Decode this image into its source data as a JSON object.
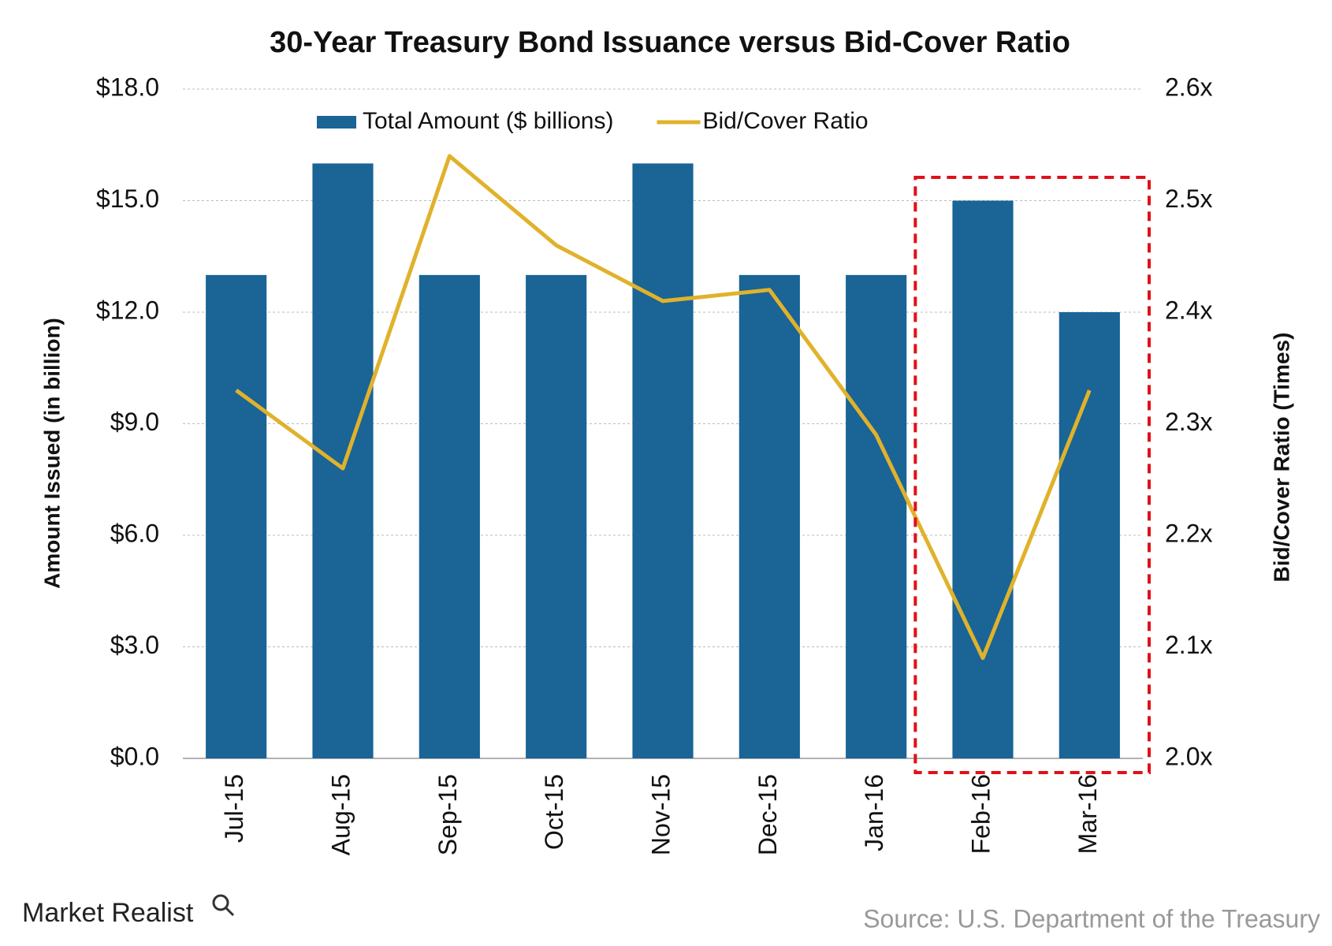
{
  "chart_data": {
    "type": "bar",
    "title": "30-Year Treasury Bond Issuance versus Bid-Cover Ratio",
    "y_label": "Amount Issued (in billion)",
    "y2_label": "Bid/Cover Ratio (Times)",
    "source": "Source: U.S. Department of the Treasury",
    "brand": "Market Realist",
    "categories": [
      "Jul-15",
      "Aug-15",
      "Sep-15",
      "Oct-15",
      "Nov-15",
      "Dec-15",
      "Jan-16",
      "Feb-16",
      "Mar-16"
    ],
    "series": [
      {
        "name": "Total Amount ($ billions)",
        "type": "bar",
        "color": "#1a6496",
        "values": [
          13,
          16,
          13,
          13,
          16,
          13,
          13,
          15,
          12
        ]
      },
      {
        "name": "Bid/Cover Ratio",
        "type": "line",
        "axis": "y2",
        "color": "#e0b22b",
        "values": [
          2.33,
          2.26,
          2.54,
          2.46,
          2.41,
          2.42,
          2.29,
          2.09,
          2.33
        ]
      }
    ],
    "ylim": [
      0,
      18
    ],
    "yticks": [
      {
        "value": 0,
        "label": "$0.0"
      },
      {
        "value": 3,
        "label": "$3.0"
      },
      {
        "value": 6,
        "label": "$6.0"
      },
      {
        "value": 9,
        "label": "$9.0"
      },
      {
        "value": 12,
        "label": "$12.0"
      },
      {
        "value": 15,
        "label": "$15.0"
      },
      {
        "value": 18,
        "label": "$18.0"
      }
    ],
    "y2lim": [
      2.0,
      2.6
    ],
    "y2ticks": [
      {
        "value": 2.0,
        "label": "2.0x"
      },
      {
        "value": 2.1,
        "label": "2.1x"
      },
      {
        "value": 2.2,
        "label": "2.2x"
      },
      {
        "value": 2.3,
        "label": "2.3x"
      },
      {
        "value": 2.4,
        "label": "2.4x"
      },
      {
        "value": 2.5,
        "label": "2.5x"
      },
      {
        "value": 2.6,
        "label": "2.6x"
      }
    ],
    "grid": true,
    "legend": "top"
  }
}
